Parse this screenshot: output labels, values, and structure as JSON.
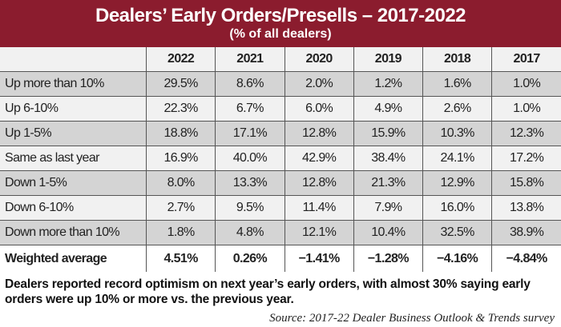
{
  "chart_data": {
    "type": "table",
    "title": "Dealers’ Early Orders/Presells – 2017-2022",
    "subtitle": "(% of all dealers)",
    "columns": [
      "2022",
      "2021",
      "2020",
      "2019",
      "2018",
      "2017"
    ],
    "rows": [
      {
        "label": "Up more than 10%",
        "values": [
          "29.5%",
          "8.6%",
          "2.0%",
          "1.2%",
          "1.6%",
          "1.0%"
        ]
      },
      {
        "label": "Up 6-10%",
        "values": [
          "22.3%",
          "6.7%",
          "6.0%",
          "4.9%",
          "2.6%",
          "1.0%"
        ]
      },
      {
        "label": "Up 1-5%",
        "values": [
          "18.8%",
          "17.1%",
          "12.8%",
          "15.9%",
          "10.3%",
          "12.3%"
        ]
      },
      {
        "label": "Same as last year",
        "values": [
          "16.9%",
          "40.0%",
          "42.9%",
          "38.4%",
          "24.1%",
          "17.2%"
        ]
      },
      {
        "label": "Down 1-5%",
        "values": [
          "8.0%",
          "13.3%",
          "12.8%",
          "21.3%",
          "12.9%",
          "15.8%"
        ]
      },
      {
        "label": "Down 6-10%",
        "values": [
          "2.7%",
          "9.5%",
          "11.4%",
          "7.9%",
          "16.0%",
          "13.8%"
        ]
      },
      {
        "label": "Down more than 10%",
        "values": [
          "1.8%",
          "4.8%",
          "12.1%",
          "10.4%",
          "32.5%",
          "38.9%"
        ]
      }
    ],
    "summary_row": {
      "label": "Weighted average",
      "values": [
        "4.51%",
        "0.26%",
        "−1.41%",
        "−1.28%",
        "−4.16%",
        "−4.84%"
      ]
    },
    "caption": "Dealers reported record optimism on next year’s early orders, with almost 30% saying early orders were up 10% or more vs. the previous year.",
    "source": "Source: 2017-22 Dealer Business Outlook & Trends survey"
  },
  "colors": {
    "banner": "#8b1c2e",
    "row_shade": "#d4d4d4",
    "row_light": "#f1f1f1"
  }
}
